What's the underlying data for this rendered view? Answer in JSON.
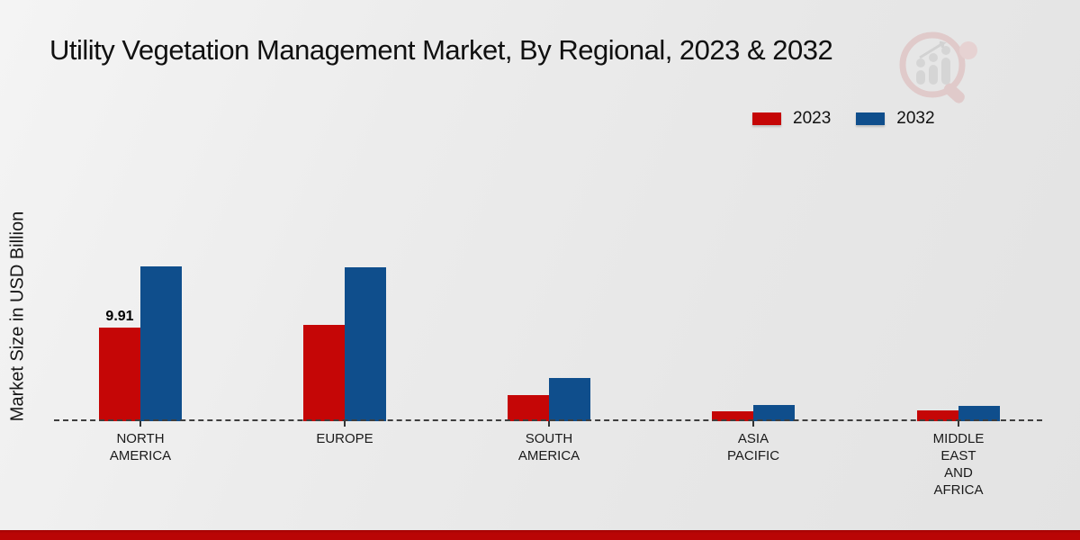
{
  "title": "Utility Vegetation Management Market, By Regional, 2023 & 2032",
  "y_axis_label": "Market Size in USD Billion",
  "icons": {
    "watermark": "magnifier-bar-chart-logo"
  },
  "legend": {
    "position": "top-right",
    "items": [
      {
        "label": "2023",
        "color": "#c50606"
      },
      {
        "label": "2032",
        "color": "#0f4e8c"
      }
    ]
  },
  "chart_data": {
    "type": "bar",
    "title": "Utility Vegetation Management Market, By Regional, 2023 & 2032",
    "xlabel": "",
    "ylabel": "Market Size in USD Billion",
    "categories": [
      "NORTH AMERICA",
      "EUROPE",
      "SOUTH AMERICA",
      "ASIA PACIFIC",
      "MIDDLE EAST AND AFRICA"
    ],
    "category_label_lines": [
      [
        "NORTH",
        "AMERICA"
      ],
      [
        "EUROPE"
      ],
      [
        "SOUTH",
        "AMERICA"
      ],
      [
        "ASIA",
        "PACIFIC"
      ],
      [
        "MIDDLE",
        "EAST",
        "AND",
        "AFRICA"
      ]
    ],
    "series": [
      {
        "name": "2023",
        "color": "#c50606",
        "values": [
          9.91,
          10.2,
          2.75,
          1.05,
          1.1
        ]
      },
      {
        "name": "2032",
        "color": "#0f4e8c",
        "values": [
          16.35,
          16.3,
          4.55,
          1.7,
          1.6
        ]
      }
    ],
    "data_labels": [
      {
        "series": "2023",
        "category": "NORTH AMERICA",
        "text": "9.91"
      }
    ],
    "ylim": [
      0,
      18
    ],
    "grid": false,
    "baseline_style": "dashed",
    "legend_position": "top-right"
  },
  "footer": {
    "bar_color": "#b90505"
  }
}
